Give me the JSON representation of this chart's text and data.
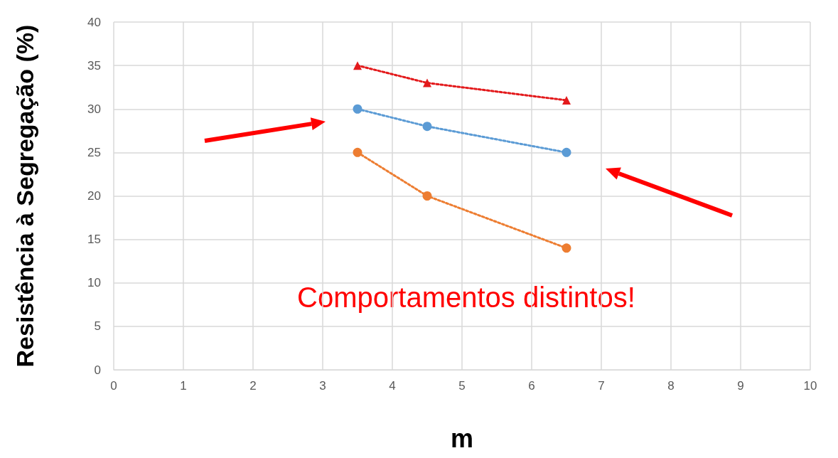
{
  "chart_data": {
    "type": "line",
    "xlabel": "m",
    "ylabel": "Resistência à Segregação (%)",
    "xlim": [
      0,
      10
    ],
    "xticks": [
      0,
      1,
      2,
      3,
      4,
      5,
      6,
      7,
      8,
      9,
      10
    ],
    "ylim": [
      0,
      40
    ],
    "yticks": [
      0,
      5,
      10,
      15,
      20,
      25,
      30,
      35,
      40
    ],
    "grid": true,
    "line_style": "dotted",
    "series": [
      {
        "color": "#e31a1c",
        "marker": "triangle",
        "x": [
          3.5,
          4.5,
          6.5
        ],
        "values": [
          35,
          33,
          31
        ]
      },
      {
        "color": "#5b9bd5",
        "marker": "circle",
        "x": [
          3.5,
          4.5,
          6.5
        ],
        "values": [
          30,
          28,
          25
        ]
      },
      {
        "color": "#ed7d31",
        "marker": "circle",
        "x": [
          3.5,
          4.5,
          6.5
        ],
        "values": [
          25,
          20,
          14
        ]
      }
    ],
    "annotations": [
      "Comportamentos distintos!"
    ]
  }
}
